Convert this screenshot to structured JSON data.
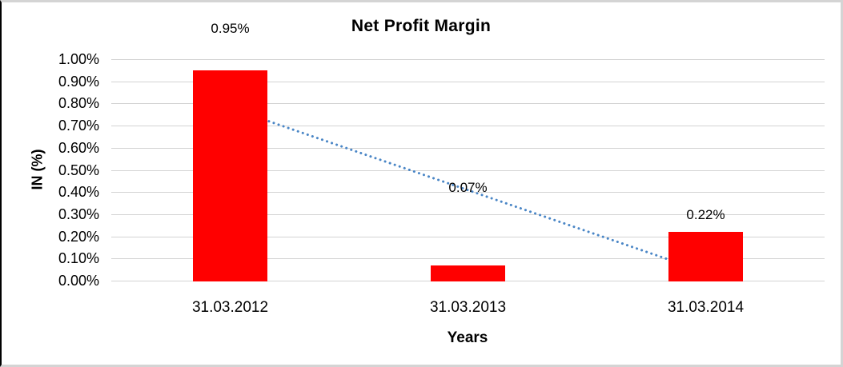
{
  "chart_data": {
    "type": "bar",
    "title": "Net Profit Margin",
    "xlabel": "Years",
    "ylabel": "IN (%)",
    "categories": [
      "31.03.2012",
      "31.03.2013",
      "31.03.2014"
    ],
    "values": [
      0.95,
      0.07,
      0.22
    ],
    "data_labels": [
      "0.95%",
      "0.07%",
      "0.22%"
    ],
    "ytick_labels": [
      "0.00%",
      "0.10%",
      "0.20%",
      "0.30%",
      "0.40%",
      "0.50%",
      "0.60%",
      "0.70%",
      "0.80%",
      "0.90%",
      "1.00%"
    ],
    "ylim": [
      0,
      1.0
    ],
    "ytick_step": 0.1,
    "grid": true,
    "legend": "none",
    "bar_color": "#FF0000",
    "gridline_color": "#D3D3D3",
    "text_color": "#000000",
    "trendline": {
      "type": "linear",
      "style": "dotted",
      "color": "#4A86C6",
      "start_value": 0.78,
      "end_value": 0.04
    }
  }
}
